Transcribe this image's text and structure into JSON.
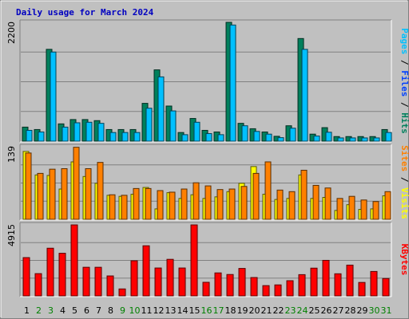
{
  "chart_data": {
    "type": "bar",
    "title": "Daily usage for March 2024",
    "x_labels": [
      "1",
      "2",
      "3",
      "4",
      "5",
      "6",
      "7",
      "8",
      "9",
      "10",
      "11",
      "12",
      "13",
      "14",
      "15",
      "16",
      "17",
      "18",
      "19",
      "20",
      "21",
      "22",
      "23",
      "24",
      "25",
      "26",
      "27",
      "28",
      "29",
      "30",
      "31"
    ],
    "weekend_days": [
      "2",
      "3",
      "9",
      "10",
      "16",
      "17",
      "23",
      "24",
      "30",
      "31"
    ],
    "panels": [
      {
        "name": "hits-files-pages",
        "ymax_label": "2200",
        "ymax": 2200,
        "side_labels": [
          "Pages",
          "Files",
          "Hits"
        ],
        "series": [
          {
            "name": "Hits",
            "color": "#00805c",
            "values": [
              260,
              215,
              1700,
              320,
              400,
              400,
              380,
              215,
              215,
              215,
              700,
              1320,
              650,
              160,
              420,
              200,
              170,
              2200,
              330,
              230,
              170,
              90,
              285,
              1900,
              130,
              250,
              85,
              85,
              85,
              85,
              215
            ]
          },
          {
            "name": "Files",
            "color": "#0040ff",
            "values": [
              200,
              170,
              1650,
              260,
              340,
              350,
              330,
              160,
              160,
              160,
              610,
              1190,
              560,
              120,
              350,
              140,
              120,
              2150,
              285,
              180,
              130,
              65,
              240,
              1700,
              95,
              165,
              60,
              60,
              60,
              60,
              160
            ]
          },
          {
            "name": "Pages",
            "color": "#00c0ff",
            "values": [
              200,
              170,
              1650,
              260,
              340,
              350,
              330,
              160,
              160,
              160,
              610,
              1190,
              560,
              120,
              350,
              140,
              120,
              2150,
              285,
              180,
              130,
              65,
              240,
              1700,
              95,
              165,
              60,
              60,
              60,
              60,
              160
            ]
          }
        ]
      },
      {
        "name": "visits-sites",
        "ymax_label": "139",
        "ymax": 139,
        "side_labels": [
          "Sites",
          "Visits"
        ],
        "series": [
          {
            "name": "Visits",
            "color": "#ffff00",
            "values": [
              130,
              85,
              84,
              58,
              110,
              82,
              69,
              46,
              44,
              48,
              61,
              20,
              51,
              40,
              47,
              40,
              43,
              53,
              69,
              101,
              48,
              38,
              40,
              85,
              40,
              42,
              17,
              28,
              19,
              20,
              45
            ]
          },
          {
            "name": "Sites",
            "color": "#ff8000",
            "values": [
              127,
              88,
              96,
              97,
              138,
              97,
              109,
              47,
              46,
              59,
              59,
              55,
              52,
              58,
              70,
              64,
              57,
              58,
              63,
              88,
              110,
              56,
              53,
              94,
              65,
              60,
              40,
              44,
              37,
              34,
              53
            ]
          }
        ]
      },
      {
        "name": "kbytes",
        "ymax_label": "4915",
        "ymax": 4915,
        "side_labels": [
          "KBytes"
        ],
        "series": [
          {
            "name": "KBytes",
            "color": "#ff0000",
            "values": [
              2650,
              1540,
              3300,
              2950,
              4915,
              1980,
              1980,
              1380,
              480,
              2430,
              3470,
              1930,
              2530,
              1930,
              4915,
              940,
              1590,
              1480,
              1900,
              1270,
              710,
              760,
              1050,
              1470,
              1920,
              2460,
              1530,
              2130,
              930,
              1690,
              1200
            ]
          }
        ]
      }
    ]
  }
}
